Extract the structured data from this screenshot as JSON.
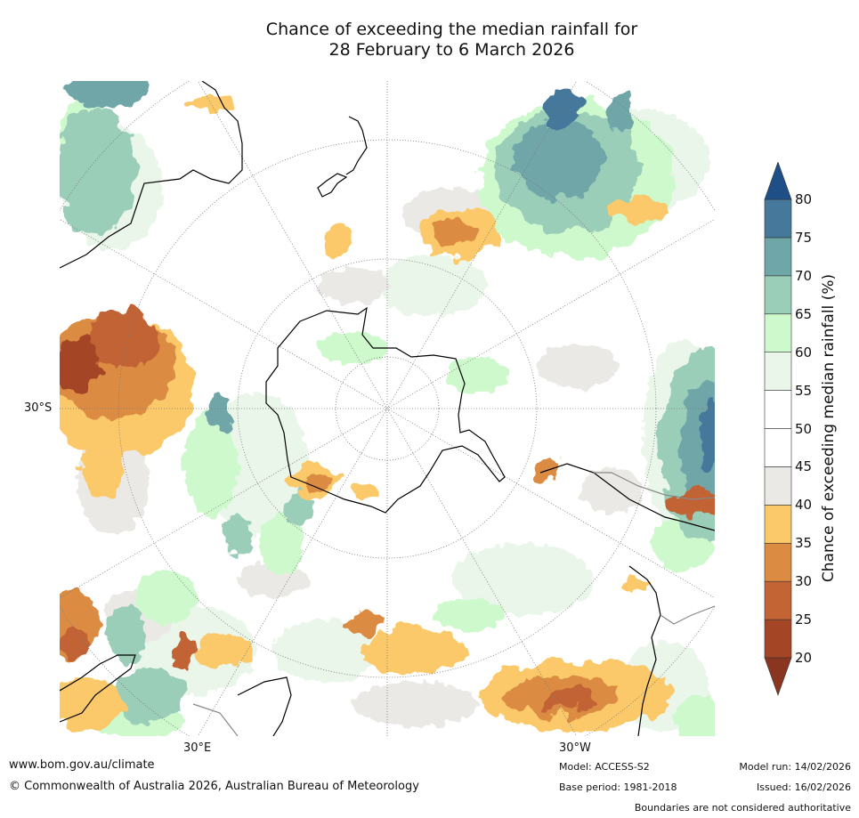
{
  "title": {
    "line1": "Chance of exceeding the median rainfall for",
    "line2": "28 February to 6 March 2026"
  },
  "map": {
    "projection": "south-polar-stereographic",
    "lat_labels": [
      "30°S"
    ],
    "lon_labels": [
      "30°E",
      "30°W"
    ],
    "coastline_color": "#000000",
    "graticule_color": "#777777",
    "anomaly_features": [
      {
        "region": "south-indian-ocean",
        "category": "20-25",
        "color": "#a44526"
      },
      {
        "region": "south-indian-ocean",
        "category": "30-35",
        "color": "#dc8c42"
      },
      {
        "region": "south-indian-ocean",
        "category": "35-40",
        "color": "#fbc96a"
      },
      {
        "region": "south-pacific-east",
        "category": "70-75",
        "color": "#6fa6a8"
      },
      {
        "region": "south-pacific-east",
        "category": "65-70",
        "color": "#9bceb9"
      },
      {
        "region": "south-atlantic-west",
        "category": "75-80",
        "color": "#45789a"
      },
      {
        "region": "tasman-sea",
        "category": "35-40",
        "color": "#fbc96a"
      },
      {
        "region": "queen-maud-land-coast",
        "category": "35-40",
        "color": "#fbc96a"
      },
      {
        "region": "south-atlantic-north",
        "category": "25-30",
        "color": "#c26434"
      },
      {
        "region": "south-of-africa",
        "category": "60-65",
        "color": "#cdf9cd"
      }
    ]
  },
  "colorbar": {
    "label": "Chance of exceeding median rainfall (%)",
    "ticks": [
      "80",
      "75",
      "70",
      "65",
      "60",
      "55",
      "50",
      "45",
      "40",
      "35",
      "30",
      "25",
      "20"
    ],
    "colors": [
      "#a44526",
      "#c26434",
      "#dc8c42",
      "#fbc96a",
      "#ebe9e5",
      "#ffffff",
      "#ffffff",
      "#e9f6e9",
      "#cdf9cd",
      "#9bceb9",
      "#6fa6a8",
      "#45789a"
    ],
    "under_color": "#8a3520",
    "over_color": "#1f4f87"
  },
  "footer": {
    "url": "www.bom.gov.au/climate",
    "copyright": "© Commonwealth of Australia 2026, Australian Bureau of Meteorology",
    "model": "Model: ACCESS-S2",
    "base_period": "Base period: 1981-2018",
    "model_run": "Model run: 14/02/2026",
    "issued": "Issued: 16/02/2026",
    "boundaries": "Boundaries are not considered authoritative"
  }
}
